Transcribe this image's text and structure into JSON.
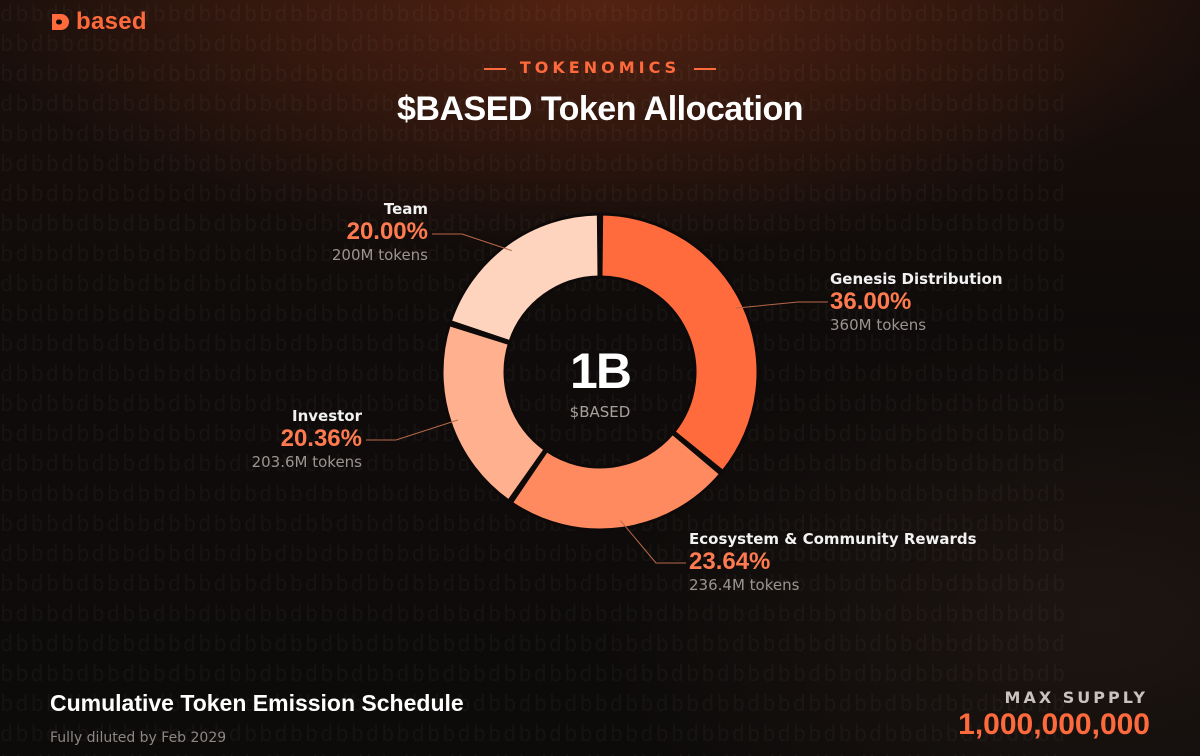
{
  "brand": {
    "name": "based",
    "color": "#ff6a3d",
    "icon": "based-logo-icon"
  },
  "header": {
    "eyebrow": "TOKENOMICS",
    "title": "$BASED Token Allocation"
  },
  "chart_data": {
    "type": "pie",
    "style": "donut",
    "title": "$BASED Token Allocation",
    "center": {
      "value": "1B",
      "label": "$BASED"
    },
    "segments": [
      {
        "name": "Genesis Distribution",
        "value": 36.0,
        "percent_label": "36.00%",
        "tokens_label": "360M tokens",
        "color": "#ff6b3d"
      },
      {
        "name": "Ecosystem & Community Rewards",
        "value": 23.64,
        "percent_label": "23.64%",
        "tokens_label": "236.4M tokens",
        "color": "#ff8a5f"
      },
      {
        "name": "Investor",
        "value": 20.36,
        "percent_label": "20.36%",
        "tokens_label": "203.6M tokens",
        "color": "#ffb08e"
      },
      {
        "name": "Team",
        "value": 20.0,
        "percent_label": "20.00%",
        "tokens_label": "200M tokens",
        "color": "#ffd4be"
      }
    ]
  },
  "footer": {
    "title": "Cumulative Token Emission Schedule",
    "subtitle": "Fully diluted by Feb 2029",
    "supply_label": "MAX SUPPLY",
    "supply_value": "1,000,000,000"
  }
}
